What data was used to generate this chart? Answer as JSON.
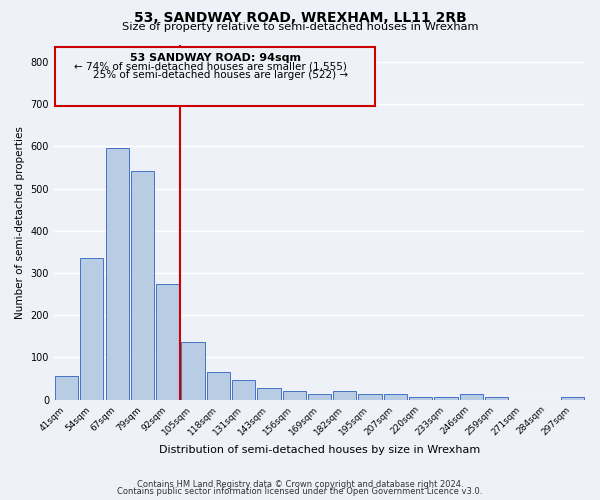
{
  "title": "53, SANDWAY ROAD, WREXHAM, LL11 2RB",
  "subtitle": "Size of property relative to semi-detached houses in Wrexham",
  "bar_labels": [
    "41sqm",
    "54sqm",
    "67sqm",
    "79sqm",
    "92sqm",
    "105sqm",
    "118sqm",
    "131sqm",
    "143sqm",
    "156sqm",
    "169sqm",
    "182sqm",
    "195sqm",
    "207sqm",
    "220sqm",
    "233sqm",
    "246sqm",
    "259sqm",
    "271sqm",
    "284sqm",
    "297sqm"
  ],
  "bar_heights": [
    57,
    336,
    596,
    542,
    275,
    136,
    65,
    46,
    28,
    21,
    14,
    21,
    14,
    14,
    7,
    7,
    14,
    7,
    0,
    0,
    7
  ],
  "bar_color": "#b8cce4",
  "bar_edge_color": "#4472c4",
  "ylim": [
    0,
    840
  ],
  "yticks": [
    0,
    100,
    200,
    300,
    400,
    500,
    600,
    700,
    800
  ],
  "ylabel": "Number of semi-detached properties",
  "xlabel": "Distribution of semi-detached houses by size in Wrexham",
  "vline_x_index": 4.5,
  "property_label": "53 SANDWAY ROAD: 94sqm",
  "annotation_line1": "← 74% of semi-detached houses are smaller (1,555)",
  "annotation_line2": "25% of semi-detached houses are larger (522) →",
  "box_color": "#cc0000",
  "footer_line1": "Contains HM Land Registry data © Crown copyright and database right 2024.",
  "footer_line2": "Contains public sector information licensed under the Open Government Licence v3.0.",
  "background_color": "#eef2f8",
  "grid_color": "#ffffff"
}
